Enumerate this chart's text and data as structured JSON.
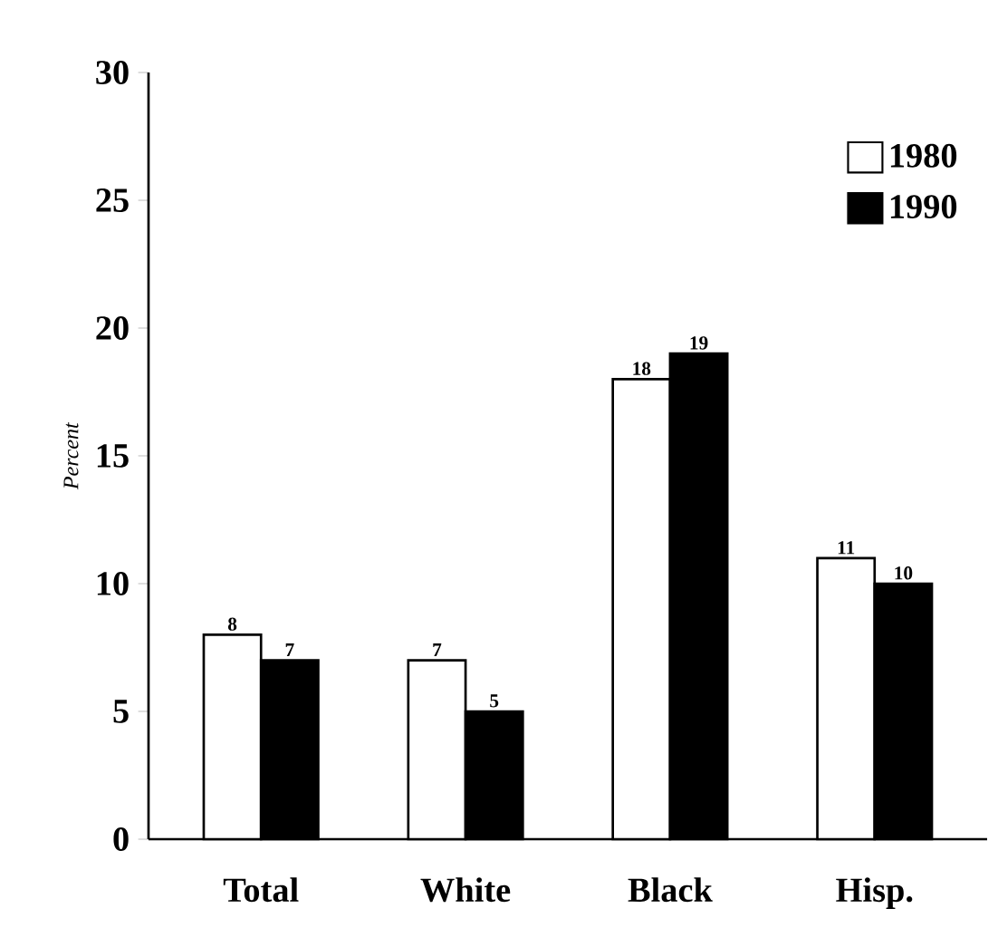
{
  "chart_data": {
    "type": "bar",
    "ylabel": "*Percent*",
    "categories": [
      "Total",
      "White",
      "Black",
      "Hisp."
    ],
    "series": [
      {
        "name": "1980",
        "color": "#ffffff",
        "values": [
          8,
          7,
          18,
          11
        ]
      },
      {
        "name": "1990",
        "color": "#000000",
        "values": [
          7,
          5,
          19,
          10
        ]
      }
    ],
    "ylim": [
      0,
      30
    ],
    "yticks": [
      0,
      5,
      10,
      15,
      20,
      25,
      30
    ],
    "data_labels": true,
    "legend": "top right"
  }
}
